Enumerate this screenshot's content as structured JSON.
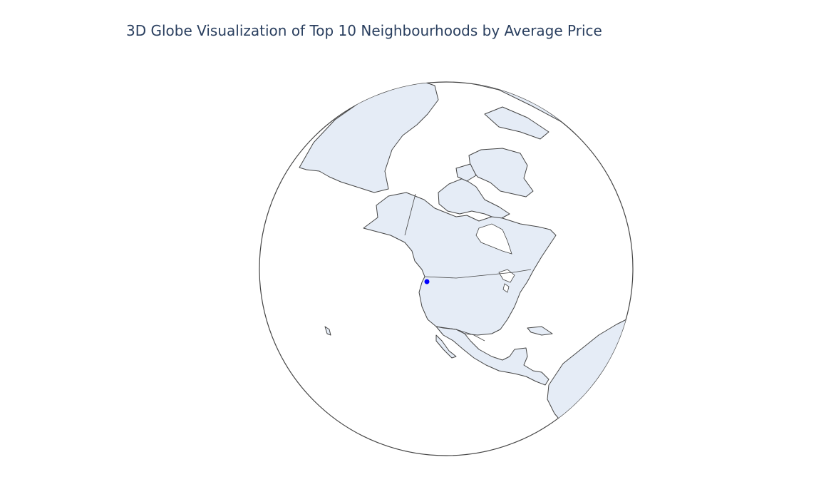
{
  "title": "3D Globe Visualization of Top 10 Neighbourhoods by Average Price",
  "colors": {
    "land": "#e5ecf6",
    "coastline": "#444444",
    "ocean": "#ffffff",
    "marker": "#0000ff",
    "title": "#2a3f5f"
  },
  "map": {
    "projection": "orthographic",
    "center": {
      "lon": -95,
      "lat": 50
    },
    "markers": [
      {
        "name": "",
        "lon": -123.1,
        "lat": 49.28
      }
    ]
  }
}
